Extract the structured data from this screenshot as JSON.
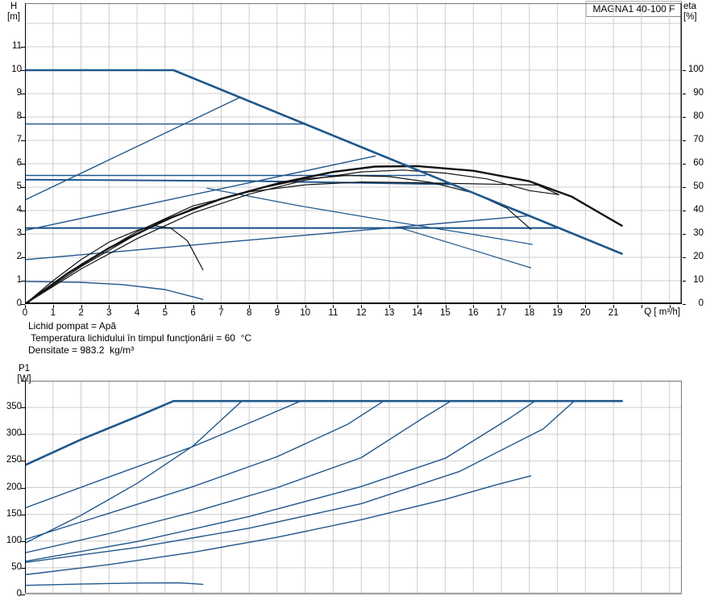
{
  "title_box": {
    "label": "MAGNA1 40-100 F"
  },
  "colors": {
    "blue": "#20578c",
    "black": "#121212",
    "grid": "#cdcdcd",
    "border": "#767676",
    "axis_top_chart": "#000000",
    "axis_bottom_chart": "#a3a3a3"
  },
  "conditions": {
    "lines": [
      "Lichid pompat = Apă",
      " Temperatura lichidului în timpul funcţionării = 60  °C",
      "Densitate = 983.2  kg/m³"
    ]
  },
  "chart_data": [
    {
      "type": "line",
      "title": "MAGNA1 40-100 F",
      "x": {
        "label": "Q [ m³/h]",
        "min": 0,
        "max": 23.44,
        "grid_max": 23,
        "show_ticks": true,
        "tick_labels": [
          0,
          1,
          2,
          3,
          4,
          5,
          6,
          7,
          8,
          9,
          10,
          11,
          12,
          13,
          14,
          15,
          16,
          17,
          18,
          19,
          20,
          21
        ]
      },
      "y_left": {
        "label": "H",
        "unit": "[m]",
        "min": 0,
        "max": 12.86,
        "grid_step": 1,
        "grid_max": 12,
        "tick_labels": [
          0,
          1,
          2,
          3,
          4,
          5,
          6,
          7,
          8,
          9,
          10,
          11
        ]
      },
      "y_right": {
        "label": "eta",
        "unit": "[%]",
        "min": 0,
        "max": 128.6,
        "tick_labels": [
          0,
          10,
          20,
          30,
          40,
          50,
          60,
          70,
          80,
          90,
          100
        ]
      },
      "series": [
        {
          "name": "prop-pressure-curve-a",
          "color": "blue",
          "width": 1.4,
          "axis": "left",
          "points": [
            [
              0,
              4.45
            ],
            [
              7.7,
              8.85
            ]
          ]
        },
        {
          "name": "prop-pressure-curve-b",
          "color": "blue",
          "width": 1.4,
          "axis": "left",
          "points": [
            [
              0,
              3.15
            ],
            [
              12.5,
              6.33
            ]
          ]
        },
        {
          "name": "prop-pressure-curve-c",
          "color": "blue",
          "width": 1.4,
          "axis": "left",
          "points": [
            [
              0,
              1.9
            ],
            [
              18,
              3.78
            ]
          ]
        },
        {
          "name": "const-pressure-curve-7-7",
          "color": "blue",
          "width": 1.4,
          "axis": "left",
          "points": [
            [
              0,
              7.7
            ],
            [
              10,
              7.7
            ]
          ]
        },
        {
          "name": "const-pressure-curve-5-5",
          "color": "blue",
          "width": 1.4,
          "axis": "left",
          "points": [
            [
              0,
              5.5
            ],
            [
              14.3,
              5.5
            ]
          ]
        },
        {
          "name": "const-pressure-curve-5-3",
          "color": "blue",
          "width": 2,
          "axis": "left",
          "points": [
            [
              0,
              5.32
            ],
            [
              8,
              5.26
            ],
            [
              15.2,
              5.12
            ]
          ]
        },
        {
          "name": "const-pressure-curve-3-2",
          "color": "blue",
          "width": 2.2,
          "axis": "left",
          "points": [
            [
              0,
              3.25
            ],
            [
              19,
              3.25
            ]
          ]
        },
        {
          "name": "speed-curve-mid",
          "color": "blue",
          "width": 1.2,
          "axis": "left",
          "points": [
            [
              6.5,
              4.95
            ],
            [
              9.75,
              4.21
            ],
            [
              13,
              3.55
            ],
            [
              16,
              2.98
            ],
            [
              18.1,
              2.55
            ]
          ]
        },
        {
          "name": "speed-curve-low",
          "color": "blue",
          "width": 1.2,
          "axis": "left",
          "points": [
            [
              13.4,
              3.25
            ],
            [
              15.2,
              2.6
            ],
            [
              18.05,
              1.55
            ]
          ]
        },
        {
          "name": "min-speed-curve",
          "color": "blue",
          "width": 1.4,
          "axis": "left",
          "points": [
            [
              0,
              0.97
            ],
            [
              2,
              0.93
            ],
            [
              3.5,
              0.83
            ],
            [
              5,
              0.62
            ],
            [
              6.35,
              0.2
            ]
          ]
        },
        {
          "name": "eta-curve-2",
          "color": "black",
          "width": 1.2,
          "axis": "right",
          "points": [
            [
              0,
              0
            ],
            [
              2,
              15
            ],
            [
              4,
              28
            ],
            [
              6,
              39
            ],
            [
              8,
              47
            ],
            [
              10,
              53
            ],
            [
              12,
              56.5
            ],
            [
              13.5,
              57.3
            ],
            [
              15,
              56
            ],
            [
              16.5,
              53.5
            ],
            [
              18,
              48.5
            ],
            [
              19.05,
              46.8
            ]
          ]
        },
        {
          "name": "eta-curve-3",
          "color": "black",
          "width": 1.2,
          "axis": "right",
          "points": [
            [
              0,
              0
            ],
            [
              2,
              16
            ],
            [
              4,
              30
            ],
            [
              6,
              41
            ],
            [
              8,
              48.5
            ],
            [
              10,
              53.5
            ],
            [
              11.5,
              55
            ],
            [
              13,
              54.5
            ],
            [
              14.5,
              52
            ],
            [
              16,
              47.5
            ],
            [
              17.2,
              41
            ],
            [
              18.05,
              32
            ]
          ]
        },
        {
          "name": "eta-curve-4",
          "color": "black",
          "width": 1.2,
          "axis": "right",
          "points": [
            [
              0,
              0
            ],
            [
              2,
              17
            ],
            [
              4,
              31
            ],
            [
              6,
              42
            ],
            [
              8,
              48
            ],
            [
              10,
              51
            ],
            [
              12,
              52.2
            ],
            [
              14,
              51.9
            ],
            [
              16,
              51.4
            ],
            [
              18.3,
              50.9
            ],
            [
              19.05,
              46.8
            ]
          ]
        },
        {
          "name": "eta-min-curve",
          "color": "black",
          "width": 1.2,
          "axis": "right",
          "points": [
            [
              0,
              0
            ],
            [
              1,
              10
            ],
            [
              2,
              19
            ],
            [
              3,
              26.5
            ],
            [
              4,
              31.5
            ],
            [
              4.6,
              33.5
            ],
            [
              5.2,
              32.5
            ],
            [
              5.8,
              27
            ],
            [
              6.35,
              14.7
            ]
          ]
        },
        {
          "name": "eta-max-curve",
          "color": "black",
          "width": 2.4,
          "axis": "right",
          "points": [
            [
              0,
              0
            ],
            [
              1.5,
              13
            ],
            [
              3,
              24
            ],
            [
              5,
              36
            ],
            [
              7,
              45
            ],
            [
              9,
              51.5
            ],
            [
              11,
              56.5
            ],
            [
              12.5,
              58.8
            ],
            [
              14,
              59
            ],
            [
              16,
              57
            ],
            [
              18,
              52.5
            ],
            [
              19.5,
              46
            ],
            [
              21.3,
              33.5
            ]
          ]
        },
        {
          "name": "max-speed-curve",
          "color": "blue",
          "width": 2.6,
          "axis": "left",
          "points": [
            [
              0,
              10
            ],
            [
              5.3,
              10
            ],
            [
              21.3,
              2.15
            ]
          ]
        }
      ]
    },
    {
      "type": "line",
      "title": "P1",
      "x": {
        "label": "",
        "min": 0,
        "max": 23.44,
        "grid_max": 23,
        "show_ticks": false,
        "tick_labels": []
      },
      "y_left": {
        "label": "P1",
        "unit": "[W]",
        "min": 0,
        "max": 400,
        "grid_step": 50,
        "grid_max": 350,
        "tick_labels": [
          0,
          50,
          100,
          150,
          200,
          250,
          300,
          350
        ]
      },
      "series": [
        {
          "name": "power-curve-prop-a",
          "color": "blue",
          "width": 1.4,
          "axis": "left",
          "points": [
            [
              0,
              96
            ],
            [
              2,
              148
            ],
            [
              4,
              208
            ],
            [
              6,
              278
            ],
            [
              7.74,
              362
            ]
          ]
        },
        {
          "name": "power-curve-cp-7-7",
          "color": "blue",
          "width": 1.4,
          "axis": "left",
          "points": [
            [
              0,
              162
            ],
            [
              3,
              220
            ],
            [
              6,
              277
            ],
            [
              8.5,
              332
            ],
            [
              9.84,
              362
            ]
          ]
        },
        {
          "name": "power-curve-prop-b",
          "color": "blue",
          "width": 1.4,
          "axis": "left",
          "points": [
            [
              0,
              103
            ],
            [
              3,
              152
            ],
            [
              6,
              202
            ],
            [
              9,
              258
            ],
            [
              11.5,
              318
            ],
            [
              12.8,
              362
            ]
          ]
        },
        {
          "name": "power-curve-cp-5-5",
          "color": "blue",
          "width": 1.4,
          "axis": "left",
          "points": [
            [
              0,
              78
            ],
            [
              3,
              114
            ],
            [
              6,
              154
            ],
            [
              9,
              200
            ],
            [
              12,
              256
            ],
            [
              14.2,
              330
            ],
            [
              15.2,
              362
            ]
          ]
        },
        {
          "name": "power-curve-prop-c",
          "color": "blue",
          "width": 1.4,
          "axis": "left",
          "points": [
            [
              0,
              62
            ],
            [
              4,
              99
            ],
            [
              8,
              146
            ],
            [
              12,
              202
            ],
            [
              15,
              255
            ],
            [
              17.3,
              330
            ],
            [
              18.2,
              362
            ]
          ]
        },
        {
          "name": "power-curve-cp-3-2",
          "color": "blue",
          "width": 1.4,
          "axis": "left",
          "points": [
            [
              0,
              60
            ],
            [
              4,
              88
            ],
            [
              8,
              124
            ],
            [
              12,
              170
            ],
            [
              15.5,
              230
            ],
            [
              18.5,
              310
            ],
            [
              19.6,
              362
            ]
          ]
        },
        {
          "name": "power-curve-speed-low",
          "color": "blue",
          "width": 1.4,
          "axis": "left",
          "points": [
            [
              0,
              37
            ],
            [
              3,
              56
            ],
            [
              6,
              79
            ],
            [
              9,
              107
            ],
            [
              12,
              140
            ],
            [
              15,
              178
            ],
            [
              16.8,
              205
            ],
            [
              18.05,
              222
            ]
          ]
        },
        {
          "name": "power-curve-min-speed",
          "color": "blue",
          "width": 1.4,
          "axis": "left",
          "points": [
            [
              0,
              17
            ],
            [
              2,
              19.5
            ],
            [
              4,
              21.5
            ],
            [
              5.5,
              21.8
            ],
            [
              6.35,
              19
            ]
          ]
        },
        {
          "name": "power-curve-max-speed",
          "color": "blue",
          "width": 2.6,
          "axis": "left",
          "points": [
            [
              0,
              242
            ],
            [
              2,
              290
            ],
            [
              4,
              333
            ],
            [
              5.3,
              362
            ],
            [
              21.3,
              362
            ]
          ]
        }
      ]
    }
  ]
}
